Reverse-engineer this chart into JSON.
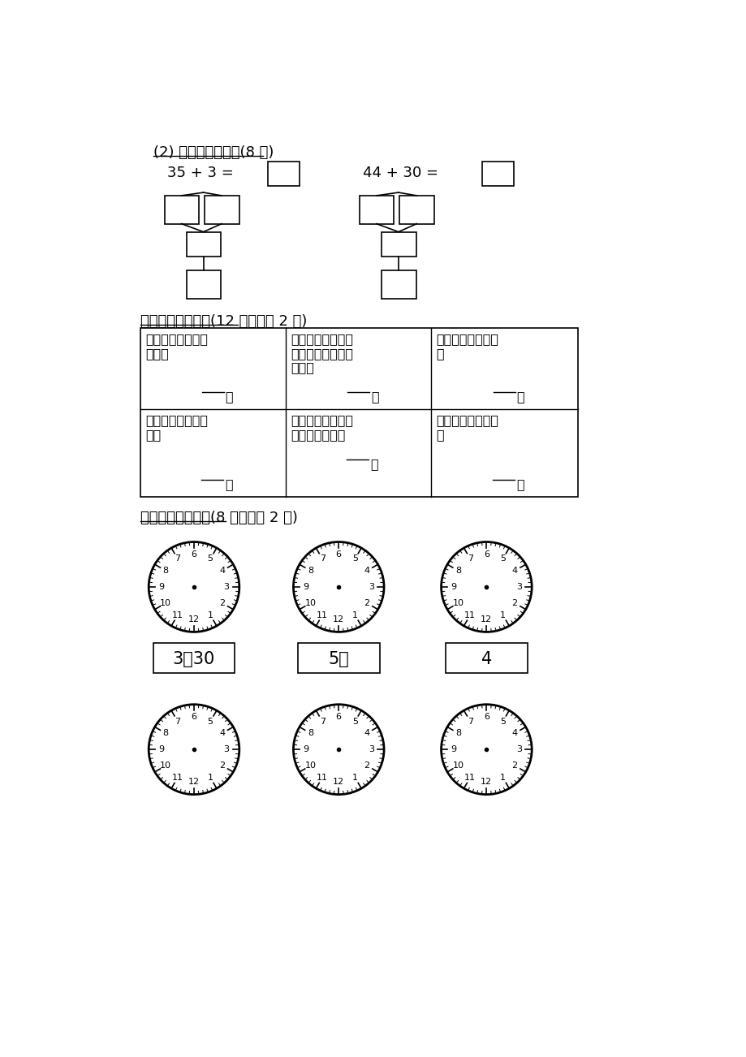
{
  "bg_color": "#ffffff",
  "title_section1": "(2) 我会照样子填。(8 分)",
  "title_section6": "六、我会填月份。(12 分，每空 2 分)",
  "title_section7": "七、我会认钟表。(8 分，每空 2 分)",
  "clock_labels_row1": [
    "3：30",
    "5：",
    "4"
  ],
  "eq1": "35 + 3 =",
  "eq2": "44 + 30 ="
}
